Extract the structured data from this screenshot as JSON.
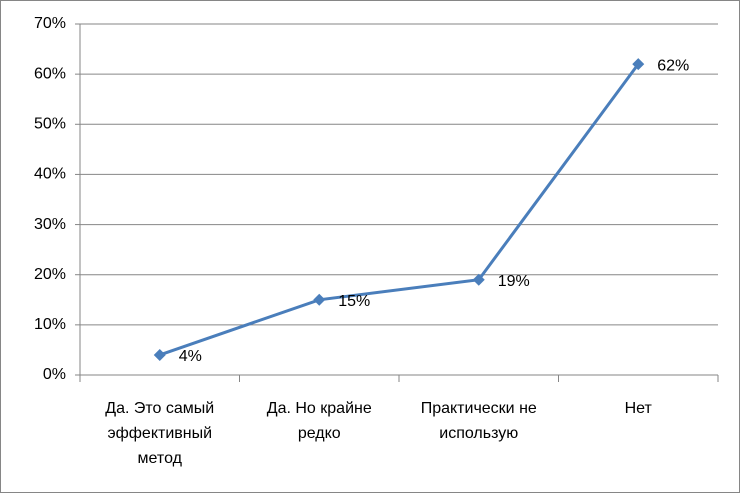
{
  "chart_data": {
    "type": "line",
    "categories": [
      "Да. Это самый эффективный метод",
      "Да. Но крайне редко",
      "Практически не использую",
      "Нет"
    ],
    "series": [
      {
        "color": "#4a7ebb",
        "values": [
          4,
          15,
          19,
          62
        ],
        "value_labels": [
          "4%",
          "15%",
          "19%",
          "62%"
        ]
      }
    ],
    "ylim": [
      0,
      70
    ],
    "yticks": [
      {
        "value": 0,
        "label": "0%"
      },
      {
        "value": 10,
        "label": "10%"
      },
      {
        "value": 20,
        "label": "20%"
      },
      {
        "value": 30,
        "label": "30%"
      },
      {
        "value": 40,
        "label": "40%"
      },
      {
        "value": 50,
        "label": "50%"
      },
      {
        "value": 60,
        "label": "60%"
      },
      {
        "value": 70,
        "label": "70%"
      }
    ],
    "grid": true
  }
}
